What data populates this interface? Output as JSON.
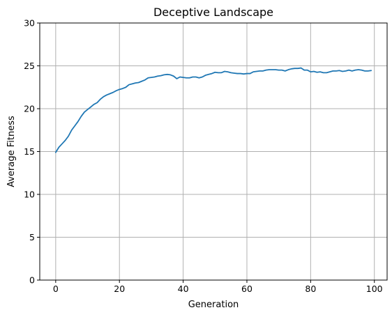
{
  "chart_data": {
    "type": "line",
    "title": "Deceptive Landscape",
    "xlabel": "Generation",
    "ylabel": "Average Fitness",
    "xlim": [
      -5,
      104
    ],
    "ylim": [
      0,
      30
    ],
    "xticks": [
      0,
      20,
      40,
      60,
      80,
      100
    ],
    "yticks": [
      0,
      5,
      10,
      15,
      20,
      25,
      30
    ],
    "grid": true,
    "series": [
      {
        "color": "#1f77b4",
        "x": [
          0,
          1,
          2,
          3,
          4,
          5,
          6,
          7,
          8,
          9,
          10,
          11,
          12,
          13,
          14,
          15,
          16,
          17,
          18,
          19,
          20,
          21,
          22,
          23,
          24,
          25,
          26,
          27,
          28,
          29,
          30,
          31,
          32,
          33,
          34,
          35,
          36,
          37,
          38,
          39,
          40,
          41,
          42,
          43,
          44,
          45,
          46,
          47,
          48,
          49,
          50,
          51,
          52,
          53,
          54,
          55,
          56,
          57,
          58,
          59,
          60,
          61,
          62,
          63,
          64,
          65,
          66,
          67,
          68,
          69,
          70,
          71,
          72,
          73,
          74,
          75,
          76,
          77,
          78,
          79,
          80,
          81,
          82,
          83,
          84,
          85,
          86,
          87,
          88,
          89,
          90,
          91,
          92,
          93,
          94,
          95,
          96,
          97,
          98,
          99
        ],
        "y": [
          14.9,
          15.5,
          15.9,
          16.3,
          16.8,
          17.5,
          18.0,
          18.5,
          19.1,
          19.6,
          19.9,
          20.2,
          20.5,
          20.7,
          21.1,
          21.4,
          21.6,
          21.75,
          21.9,
          22.1,
          22.25,
          22.35,
          22.5,
          22.8,
          22.9,
          23.0,
          23.05,
          23.2,
          23.35,
          23.6,
          23.65,
          23.7,
          23.8,
          23.85,
          23.95,
          24.0,
          23.95,
          23.8,
          23.5,
          23.7,
          23.65,
          23.6,
          23.6,
          23.7,
          23.7,
          23.6,
          23.7,
          23.9,
          24.0,
          24.1,
          24.25,
          24.2,
          24.2,
          24.35,
          24.3,
          24.2,
          24.15,
          24.1,
          24.1,
          24.05,
          24.1,
          24.1,
          24.3,
          24.35,
          24.4,
          24.4,
          24.5,
          24.55,
          24.55,
          24.55,
          24.5,
          24.5,
          24.4,
          24.55,
          24.65,
          24.7,
          24.7,
          24.75,
          24.5,
          24.5,
          24.3,
          24.35,
          24.25,
          24.3,
          24.2,
          24.2,
          24.3,
          24.4,
          24.4,
          24.45,
          24.35,
          24.4,
          24.5,
          24.4,
          24.5,
          24.55,
          24.5,
          24.4,
          24.4,
          24.45
        ]
      }
    ]
  }
}
